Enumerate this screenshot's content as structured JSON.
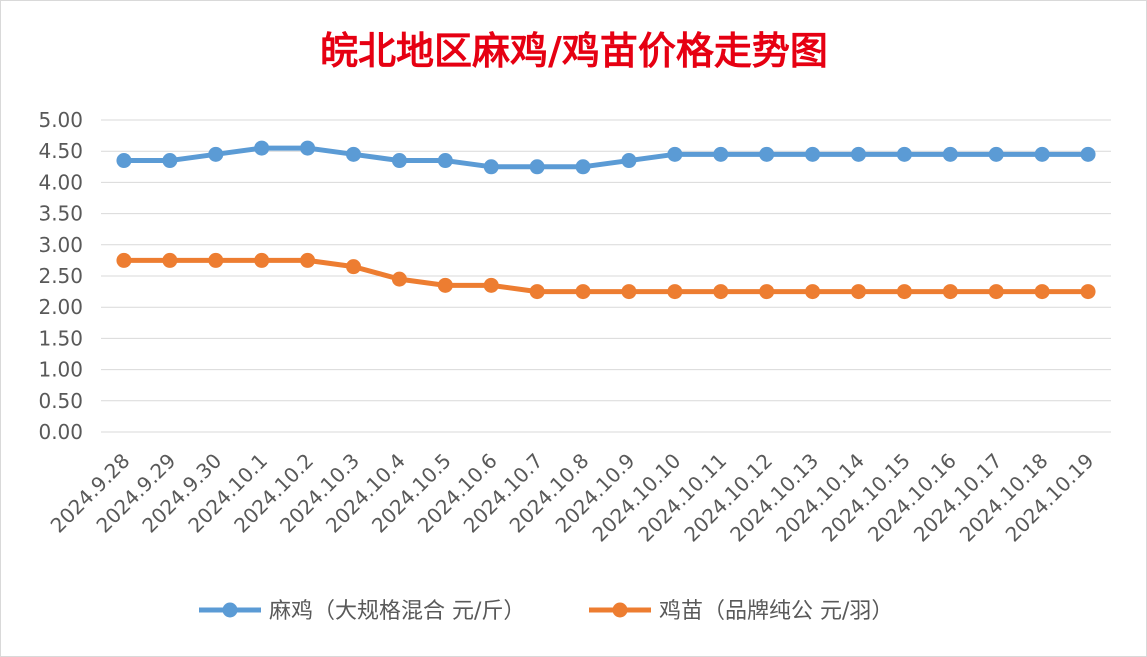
{
  "chart_data": {
    "type": "line",
    "title": "皖北地区麻鸡/鸡苗价格走势图",
    "categories": [
      "2024.9.28",
      "2024.9.29",
      "2024.9.30",
      "2024.10.1",
      "2024.10.2",
      "2024.10.3",
      "2024.10.4",
      "2024.10.5",
      "2024.10.6",
      "2024.10.7",
      "2024.10.8",
      "2024.10.9",
      "2024.10.10",
      "2024.10.11",
      "2024.10.12",
      "2024.10.13",
      "2024.10.14",
      "2024.10.15",
      "2024.10.16",
      "2024.10.17",
      "2024.10.18",
      "2024.10.19"
    ],
    "y_ticks": [
      "0.00",
      "0.50",
      "1.00",
      "1.50",
      "2.00",
      "2.50",
      "3.00",
      "3.50",
      "4.00",
      "4.50",
      "5.00"
    ],
    "ylim": [
      0,
      5
    ],
    "grid": true,
    "legend_position": "bottom",
    "series": [
      {
        "name": "麻鸡（大规格混合 元/斤）",
        "color": "#5b9bd5",
        "values": [
          4.35,
          4.35,
          4.45,
          4.55,
          4.55,
          4.45,
          4.35,
          4.35,
          4.25,
          4.25,
          4.25,
          4.35,
          4.45,
          4.45,
          4.45,
          4.45,
          4.45,
          4.45,
          4.45,
          4.45,
          4.45,
          4.45
        ]
      },
      {
        "name": "鸡苗（品牌纯公 元/羽）",
        "color": "#ed7d31",
        "values": [
          2.75,
          2.75,
          2.75,
          2.75,
          2.75,
          2.65,
          2.45,
          2.35,
          2.35,
          2.25,
          2.25,
          2.25,
          2.25,
          2.25,
          2.25,
          2.25,
          2.25,
          2.25,
          2.25,
          2.25,
          2.25,
          2.25
        ]
      }
    ]
  }
}
